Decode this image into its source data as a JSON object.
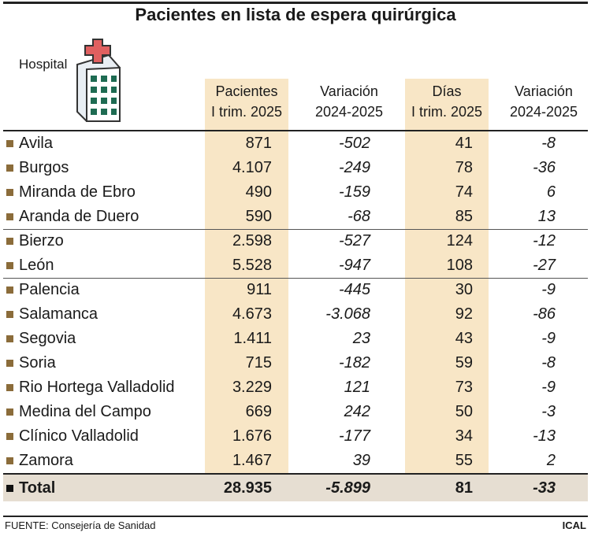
{
  "title": "Pacientes en lista de espera quirúrgica",
  "header": {
    "hospital": "Hospital",
    "columns": [
      [
        "Pacientes",
        "I trim. 2025"
      ],
      [
        "Variación",
        "2024-2025"
      ],
      [
        "Días",
        "I trim. 2025"
      ],
      [
        "Variación",
        "2024-2025"
      ]
    ]
  },
  "table": {
    "rows": [
      [
        "Avila",
        "871",
        "-502",
        "41",
        "-8"
      ],
      [
        "Burgos",
        "4.107",
        "-249",
        "78",
        "-36"
      ],
      [
        "Miranda de Ebro",
        "490",
        "-159",
        "74",
        "6"
      ],
      [
        "Aranda de Duero",
        "590",
        "-68",
        "85",
        "13"
      ],
      [
        "Bierzo",
        "2.598",
        "-527",
        "124",
        "-12"
      ],
      [
        "León",
        "5.528",
        "-947",
        "108",
        "-27"
      ],
      [
        "Palencia",
        "911",
        "-445",
        "30",
        "-9"
      ],
      [
        "Salamanca",
        "4.673",
        "-3.068",
        "92",
        "-86"
      ],
      [
        "Segovia",
        "1.411",
        "23",
        "43",
        "-9"
      ],
      [
        "Soria",
        "715",
        "-182",
        "59",
        "-8"
      ],
      [
        "Rio Hortega Valladolid",
        "3.229",
        "121",
        "73",
        "-9"
      ],
      [
        "Medina del Campo",
        "669",
        "242",
        "50",
        "-3"
      ],
      [
        "Clínico Valladolid",
        "1.676",
        "-177",
        "34",
        "-13"
      ],
      [
        "Zamora",
        "1.467",
        "39",
        "55",
        "2"
      ]
    ],
    "total": [
      "Total",
      "28.935",
      "-5.899",
      "81",
      "-33"
    ]
  },
  "footer": {
    "source": "FUENTE: Consejería de Sanidad",
    "credit": "ICAL"
  }
}
